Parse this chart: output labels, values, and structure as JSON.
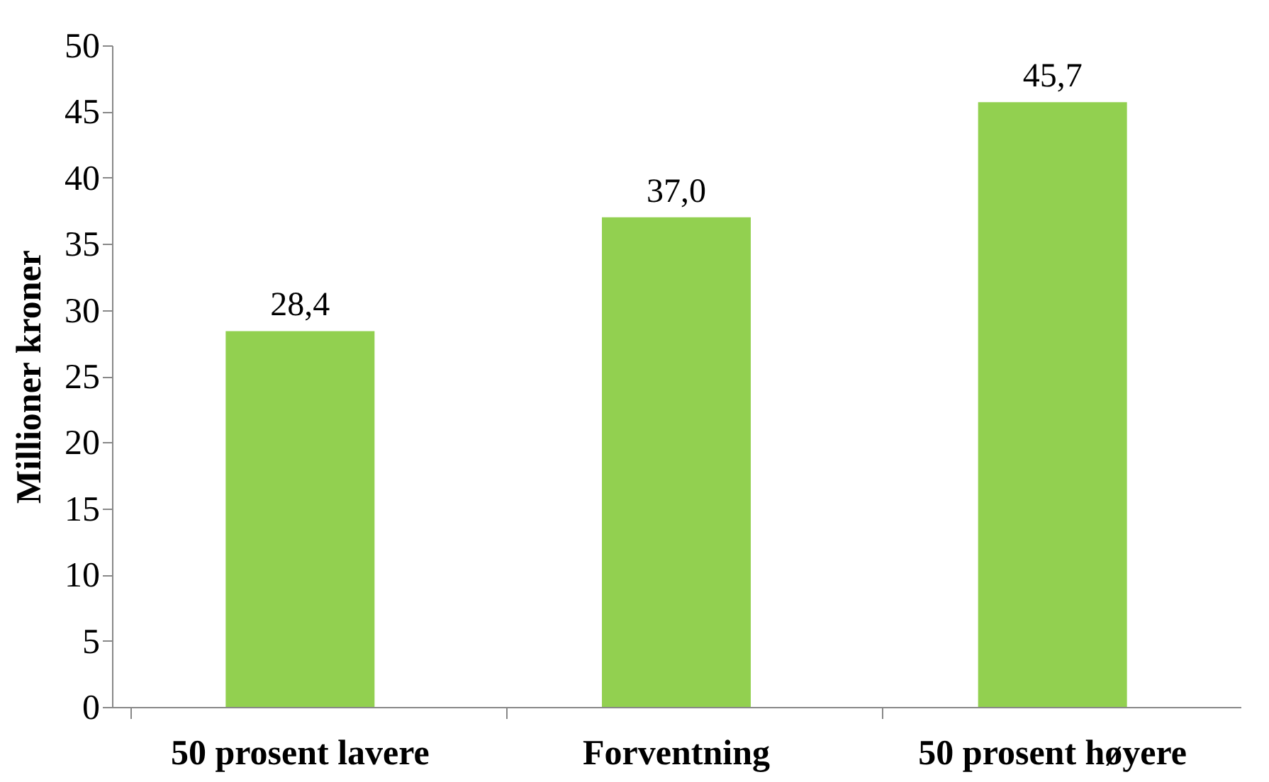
{
  "chart_data": {
    "type": "bar",
    "ylabel": "Millioner kroner",
    "categories": [
      "50 prosent lavere",
      "Forventning",
      "50 prosent høyere"
    ],
    "values": [
      28.4,
      37.0,
      45.7
    ],
    "value_labels": [
      "28,4",
      "37,0",
      "45,7"
    ],
    "color": "#92d050",
    "ylim": [
      0,
      50
    ],
    "yticks": [
      0,
      5,
      10,
      15,
      20,
      25,
      30,
      35,
      40,
      45,
      50
    ],
    "grid": false
  }
}
